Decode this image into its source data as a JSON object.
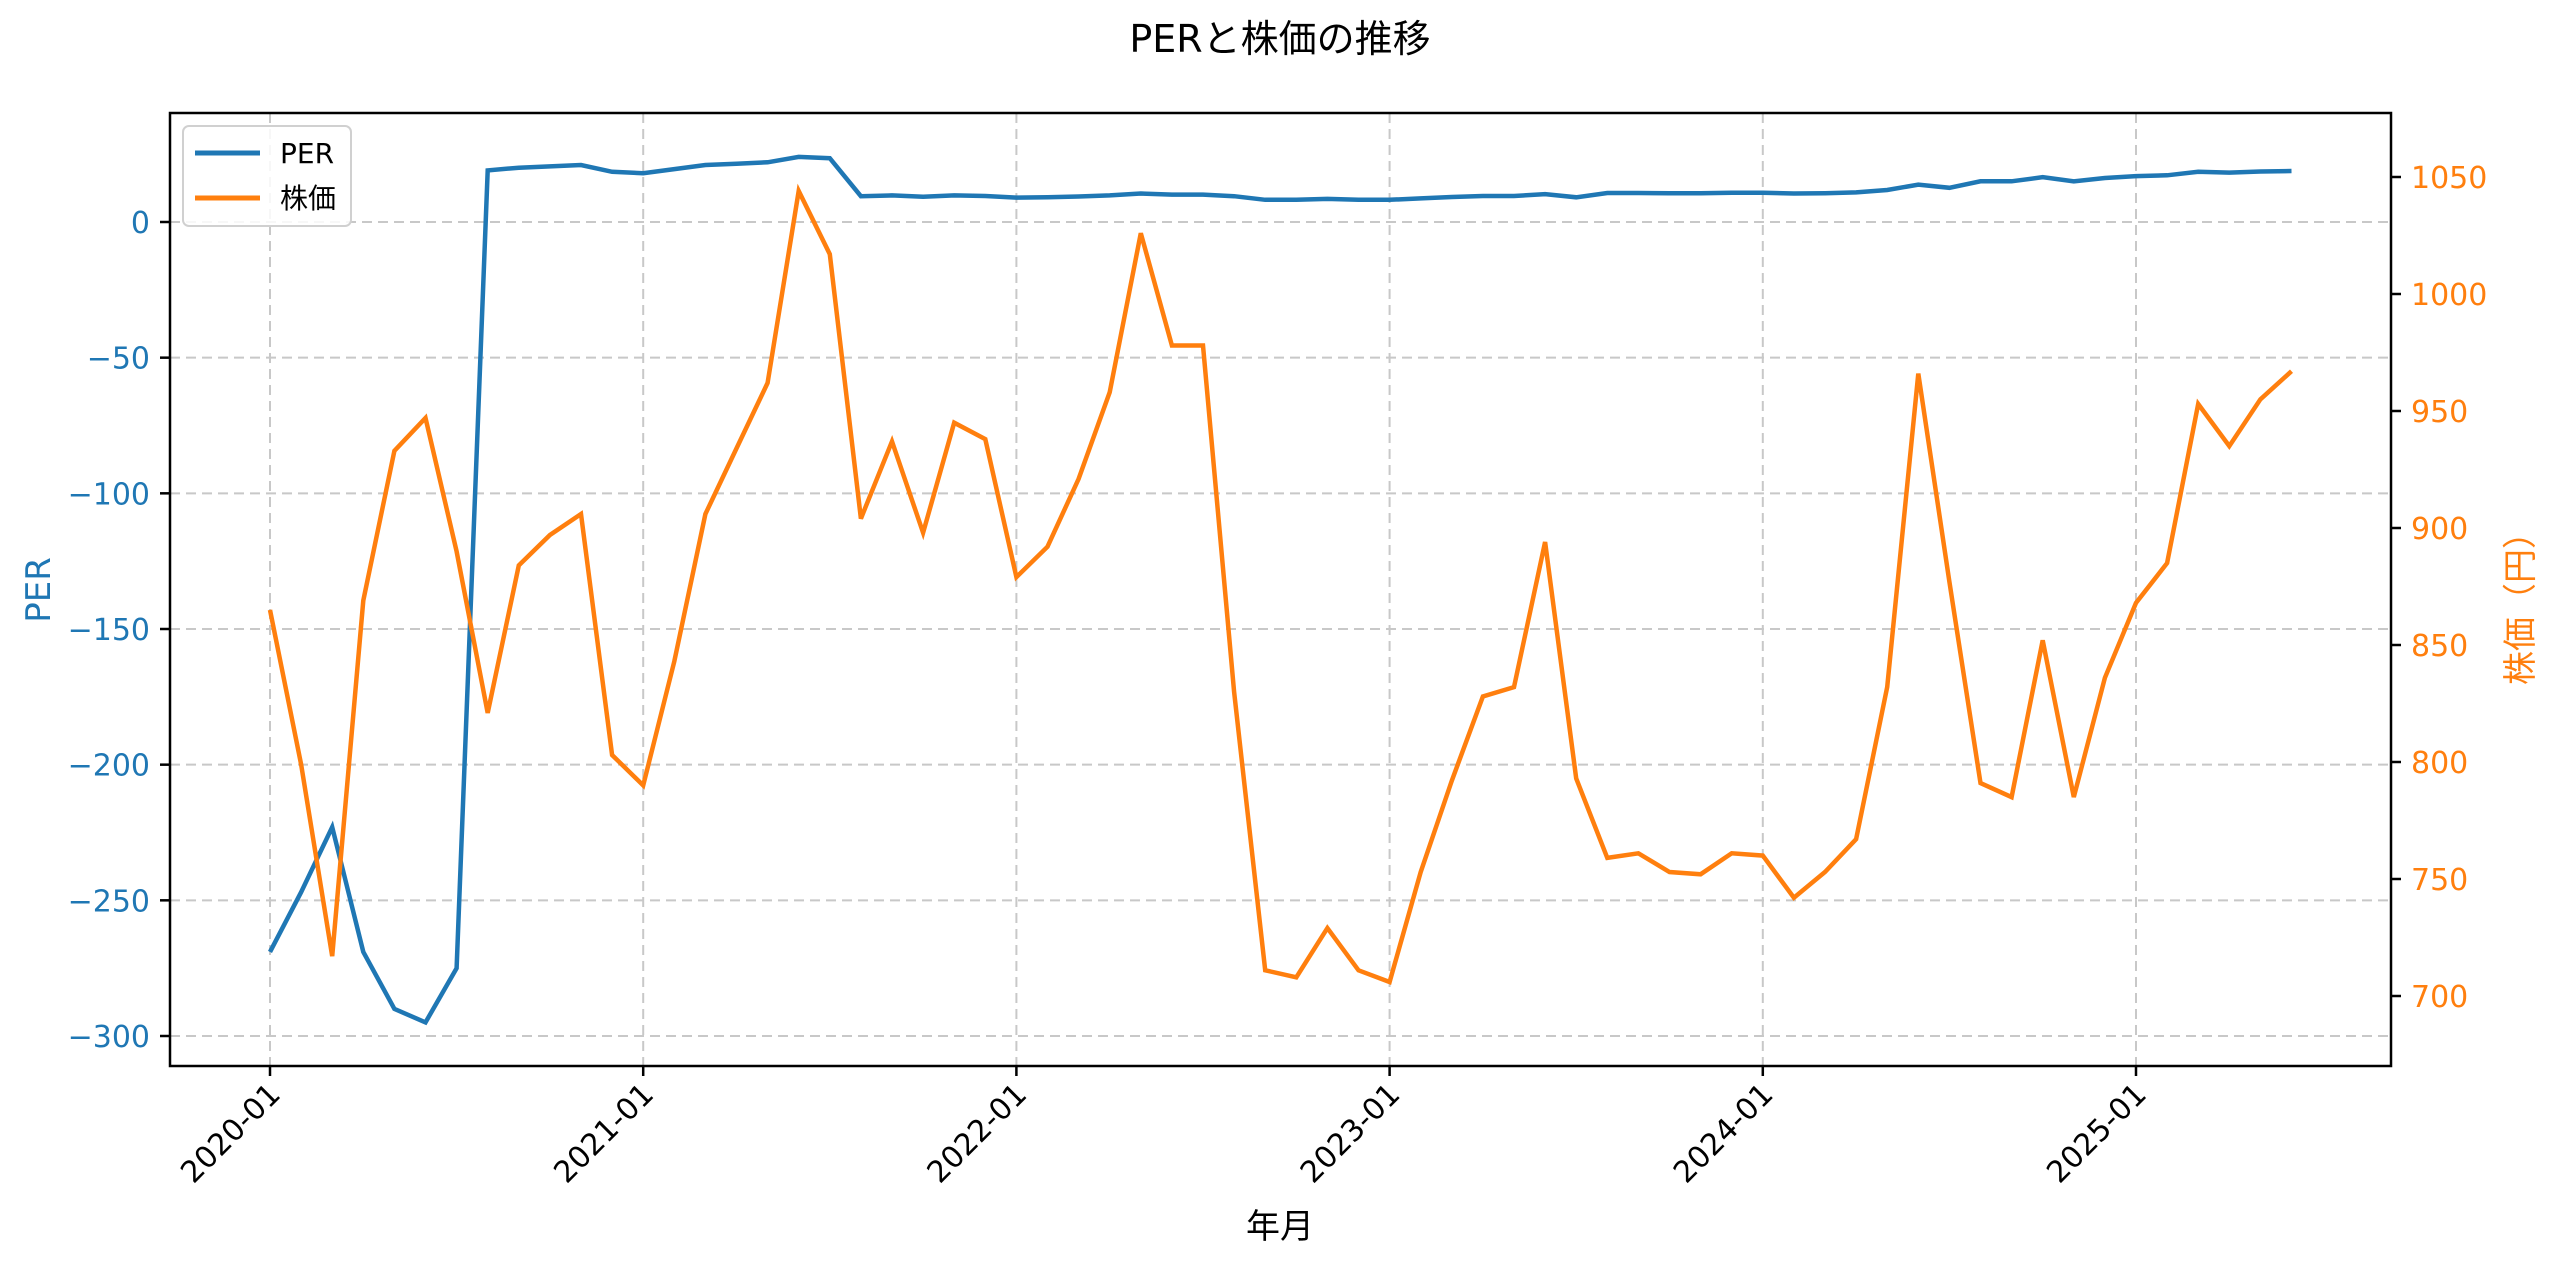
{
  "chart_data": {
    "type": "line",
    "title": "PERと株価の推移",
    "xlabel": "年月",
    "ylabel_left": "PER",
    "ylabel_right": "株価（円）",
    "left_axis_color": "#1f77b4",
    "right_axis_color": "#ff7f0e",
    "ylim_left": [
      -311,
      40
    ],
    "ylim_right": [
      673,
      1077
    ],
    "left_ticks": [
      0,
      -50,
      -100,
      -150,
      -200,
      -250,
      -300
    ],
    "left_tick_labels": [
      "0",
      "−50",
      "−100",
      "−150",
      "−200",
      "−250",
      "−300"
    ],
    "right_ticks": [
      1050,
      1000,
      950,
      900,
      850,
      800,
      750,
      700
    ],
    "right_tick_labels": [
      "1050",
      "1000",
      "950",
      "900",
      "850",
      "800",
      "750",
      "700"
    ],
    "x_tick_labels": [
      "2020-01",
      "2021-01",
      "2022-01",
      "2023-01",
      "2024-01",
      "2025-01"
    ],
    "x_tick_index": [
      0,
      12,
      24,
      36,
      48,
      60
    ],
    "grid": true,
    "legend_position": "upper left",
    "x": [
      "2020-01",
      "2020-02",
      "2020-03",
      "2020-04",
      "2020-05",
      "2020-06",
      "2020-07",
      "2020-08",
      "2020-09",
      "2020-10",
      "2020-11",
      "2020-12",
      "2021-01",
      "2021-02",
      "2021-03",
      "2021-04",
      "2021-05",
      "2021-06",
      "2021-07",
      "2021-08",
      "2021-09",
      "2021-10",
      "2021-11",
      "2021-12",
      "2022-01",
      "2022-02",
      "2022-03",
      "2022-04",
      "2022-05",
      "2022-06",
      "2022-07",
      "2022-08",
      "2022-09",
      "2022-10",
      "2022-11",
      "2022-12",
      "2023-01",
      "2023-02",
      "2023-03",
      "2023-04",
      "2023-05",
      "2023-06",
      "2023-07",
      "2023-08",
      "2023-09",
      "2023-10",
      "2023-11",
      "2023-12",
      "2024-01",
      "2024-02",
      "2024-03",
      "2024-04",
      "2024-05",
      "2024-06",
      "2024-07",
      "2024-08",
      "2024-09",
      "2024-10",
      "2024-11",
      "2024-12",
      "2025-01",
      "2025-02",
      "2025-03",
      "2025-04",
      "2025-05",
      "2025-06"
    ],
    "series": [
      {
        "name": "PER",
        "axis": "left",
        "color": "#1f77b4",
        "values": [
          -269,
          -247,
          -223,
          -269,
          -290,
          -295,
          -275,
          19,
          20,
          20.5,
          21,
          18.5,
          18,
          19.5,
          21,
          21.5,
          22,
          24,
          23.5,
          9.5,
          9.8,
          9.3,
          9.8,
          9.6,
          9,
          9.1,
          9.4,
          9.8,
          10.5,
          10.1,
          10.1,
          9.5,
          8.2,
          8.2,
          8.5,
          8.2,
          8.2,
          8.7,
          9.2,
          9.6,
          9.6,
          10.3,
          9.1,
          10.7,
          10.7,
          10.6,
          10.6,
          10.8,
          10.8,
          10.5,
          10.6,
          10.9,
          11.8,
          13.8,
          12.6,
          15,
          15,
          16.5,
          15,
          16.2,
          16.9,
          17.2,
          18.5,
          18.2,
          18.6,
          18.8
        ]
      },
      {
        "name": "株価",
        "axis": "right",
        "color": "#ff7f0e",
        "values": [
          865,
          799,
          717,
          869,
          933,
          947,
          890,
          821,
          884,
          897,
          906,
          803,
          790,
          843,
          906,
          934,
          962,
          1044,
          1017,
          904,
          937,
          898,
          945,
          938,
          879,
          892,
          921,
          958,
          1026,
          978,
          978,
          830,
          711,
          708,
          729,
          711,
          706,
          753,
          792,
          828,
          832,
          894,
          793,
          759,
          761,
          753,
          752,
          761,
          760,
          742,
          753,
          767,
          832,
          966,
          877,
          791,
          785,
          852,
          785,
          836,
          868,
          885,
          953,
          935,
          955,
          967
        ]
      }
    ]
  },
  "legend": {
    "items": [
      {
        "label": "PER",
        "color": "#1f77b4"
      },
      {
        "label": "株価",
        "color": "#ff7f0e"
      }
    ]
  }
}
